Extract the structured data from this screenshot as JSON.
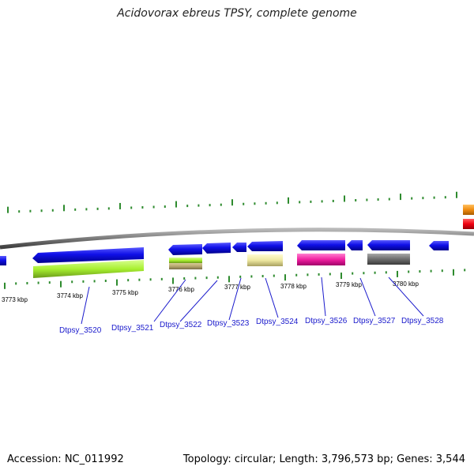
{
  "title": "Acidovorax ebreus TPSY, complete genome",
  "footer": {
    "accession": "Accession: NC_011992",
    "topology": "Topology: circular; Length: 3,796,573 bp; Genes: 3,544"
  },
  "ruler_labels": [
    "3773 kbp",
    "3774 kbp",
    "3775 kbp",
    "3776 kbp",
    "3777 kbp",
    "3778 kbp",
    "3779 kbp",
    "3780 kbp"
  ],
  "gene_labels": [
    "Dtpsy_3520",
    "Dtpsy_3521",
    "Dtpsy_3522",
    "Dtpsy_3523",
    "Dtpsy_3524",
    "Dtpsy_3526",
    "Dtpsy_3527",
    "Dtpsy_3528"
  ],
  "colors": {
    "backbone": "#7a7a7a",
    "tick": "#2e8b2e",
    "gene": "#1010e8",
    "label": "#1a1acc",
    "cog_green": "#a8f030",
    "cog_olive": "#b8a870",
    "cog_khaki": "#eee8a0",
    "cog_pink": "#f020a0",
    "cog_gray": "#6e6e6e",
    "cog_orange": "#f08c10",
    "cog_red": "#f00010"
  }
}
